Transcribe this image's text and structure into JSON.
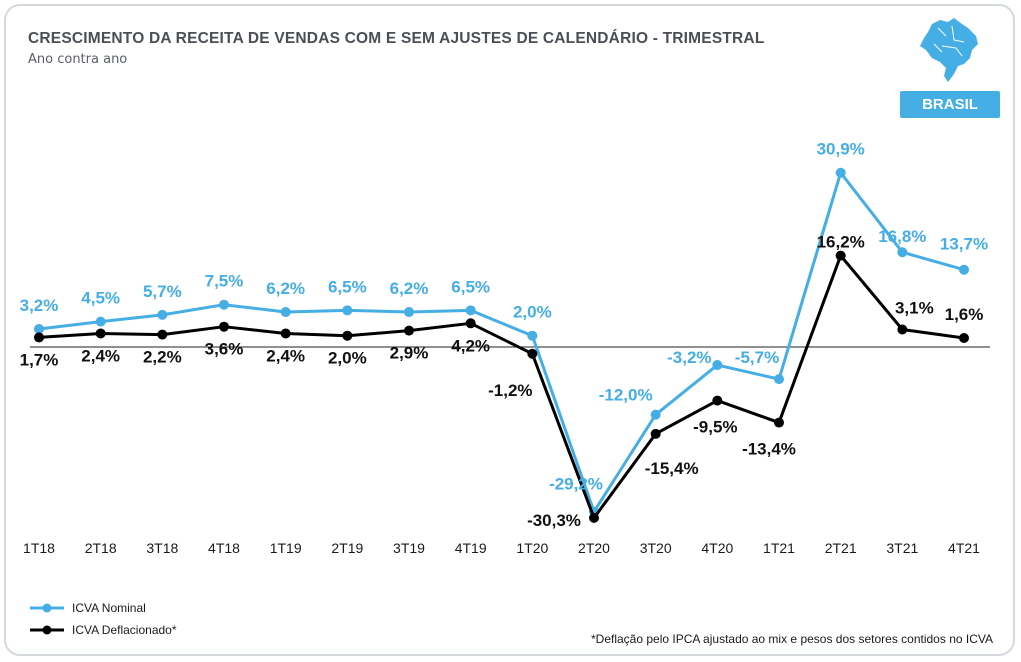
{
  "header": {
    "title": "CRESCIMENTO DA RECEITA DE VENDAS COM E SEM AJUSTES DE CALENDÁRIO - TRIMESTRAL",
    "subtitle": "Ano contra ano",
    "badge": "BRASIL"
  },
  "footnote": "*Deflação pelo IPCA ajustado ao mix e pesos dos setores contidos no ICVA",
  "colors": {
    "nominal": "#45aee5",
    "deflated": "#000000",
    "badge": "#45aee5",
    "map": "#45aee5"
  },
  "icons": {
    "map": "brazil-map-icon"
  },
  "chart_data": {
    "type": "line",
    "categories": [
      "1T18",
      "2T18",
      "3T18",
      "4T18",
      "1T19",
      "2T19",
      "3T19",
      "4T19",
      "1T20",
      "2T20",
      "3T20",
      "4T20",
      "1T21",
      "2T21",
      "3T21",
      "4T21"
    ],
    "series": [
      {
        "name": "ICVA Nominal",
        "color": "#45aee5",
        "values": [
          3.2,
          4.5,
          5.7,
          7.5,
          6.2,
          6.5,
          6.2,
          6.5,
          2.0,
          -29.2,
          -12.0,
          -3.2,
          -5.7,
          30.9,
          16.8,
          13.7
        ],
        "labels": [
          "3,2%",
          "4,5%",
          "5,7%",
          "7,5%",
          "6,2%",
          "6,5%",
          "6,2%",
          "6,5%",
          "2,0%",
          "-29,2%",
          "-12,0%",
          "-3,2%",
          "-5,7%",
          "30,9%",
          "16,8%",
          "13,7%"
        ]
      },
      {
        "name": "ICVA Deflacionado*",
        "color": "#000000",
        "values": [
          1.7,
          2.4,
          2.2,
          3.6,
          2.4,
          2.0,
          2.9,
          4.2,
          -1.2,
          -30.3,
          -15.4,
          -9.5,
          -13.4,
          16.2,
          3.1,
          1.6
        ],
        "labels": [
          "1,7%",
          "2,4%",
          "2,2%",
          "3,6%",
          "2,4%",
          "2,0%",
          "2,9%",
          "4,2%",
          "-1,2%",
          "-30,3%",
          "-15,4%",
          "-9,5%",
          "-13,4%",
          "16,2%",
          "3,1%",
          "1,6%"
        ]
      }
    ],
    "ylim": [
      -32,
      32
    ],
    "zero_line": true,
    "grid": false,
    "legend_position": "bottom-left"
  }
}
